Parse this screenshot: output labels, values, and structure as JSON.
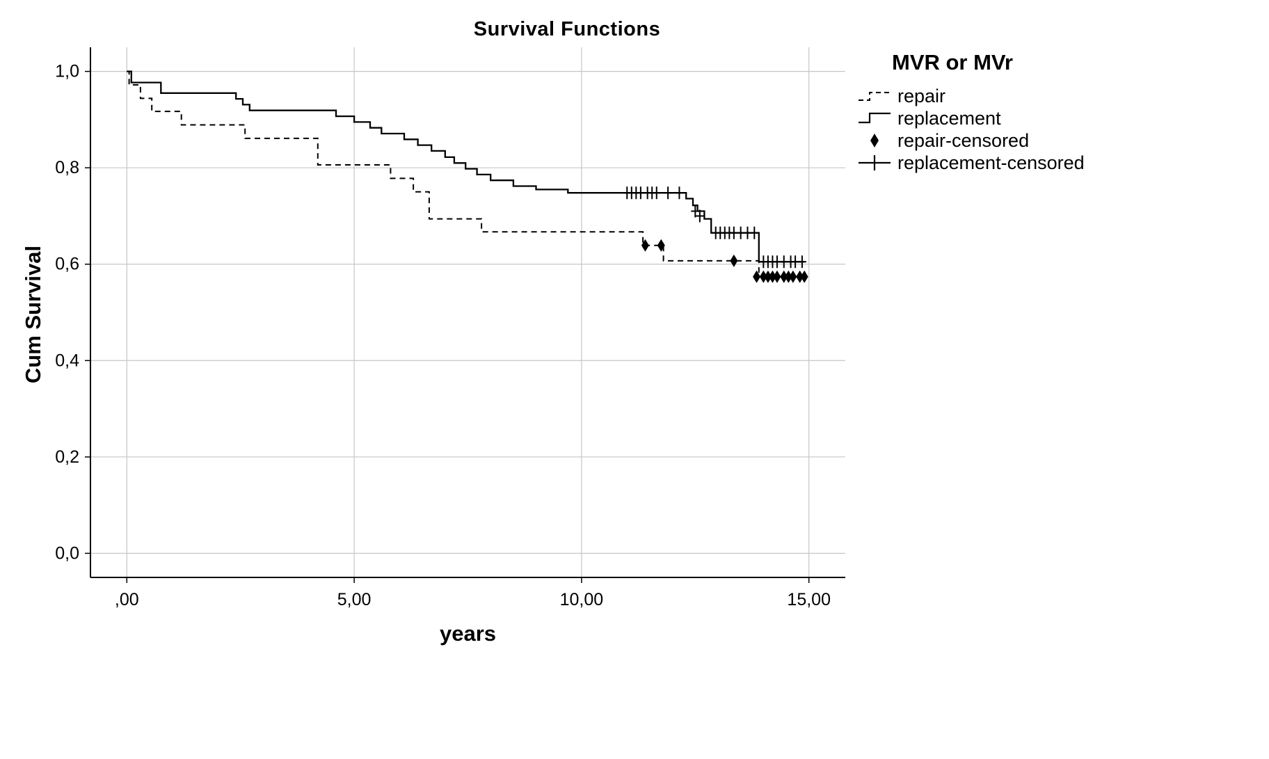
{
  "chart_data": {
    "type": "line",
    "subtype": "kaplan-meier-step",
    "title": "Survival Functions",
    "xlabel": "years",
    "ylabel": "Cum Survival",
    "legend_title": "MVR or MVr",
    "xlim": [
      -0.8,
      15.8
    ],
    "ylim": [
      -0.05,
      1.05
    ],
    "xticks": [
      0,
      5,
      10,
      15
    ],
    "xtick_labels": [
      ",00",
      "5,00",
      "10,00",
      "15,00"
    ],
    "yticks": [
      0.0,
      0.2,
      0.4,
      0.6,
      0.8,
      1.0
    ],
    "ytick_labels": [
      "0,0",
      "0,2",
      "0,4",
      "0,6",
      "0,8",
      "1,0"
    ],
    "grid": true,
    "legend_position": "right",
    "colors": {
      "line": "#000000",
      "grid": "#c6c6c6",
      "background": "#ffffff"
    },
    "series": [
      {
        "name": "repair",
        "type": "step",
        "style": "dashed",
        "points": [
          [
            0,
            1.0
          ],
          [
            0.05,
            0.972
          ],
          [
            0.3,
            0.944
          ],
          [
            0.55,
            0.917
          ],
          [
            1.2,
            0.889
          ],
          [
            2.6,
            0.861
          ],
          [
            4.2,
            0.806
          ],
          [
            5.8,
            0.778
          ],
          [
            6.3,
            0.75
          ],
          [
            6.65,
            0.694
          ],
          [
            7.8,
            0.667
          ],
          [
            11.35,
            0.639
          ],
          [
            11.8,
            0.607
          ],
          [
            13.9,
            0.574
          ],
          [
            14.9,
            0.574
          ]
        ]
      },
      {
        "name": "replacement",
        "type": "step",
        "style": "solid",
        "points": [
          [
            0,
            1.0
          ],
          [
            0.1,
            0.977
          ],
          [
            0.75,
            0.955
          ],
          [
            2.4,
            0.943
          ],
          [
            2.55,
            0.931
          ],
          [
            2.7,
            0.919
          ],
          [
            4.6,
            0.907
          ],
          [
            5.0,
            0.895
          ],
          [
            5.35,
            0.883
          ],
          [
            5.6,
            0.871
          ],
          [
            6.1,
            0.859
          ],
          [
            6.4,
            0.847
          ],
          [
            6.7,
            0.835
          ],
          [
            7.0,
            0.822
          ],
          [
            7.2,
            0.81
          ],
          [
            7.45,
            0.798
          ],
          [
            7.7,
            0.786
          ],
          [
            8.0,
            0.774
          ],
          [
            8.5,
            0.762
          ],
          [
            9.0,
            0.755
          ],
          [
            9.7,
            0.748
          ],
          [
            12.3,
            0.736
          ],
          [
            12.45,
            0.722
          ],
          [
            12.55,
            0.71
          ],
          [
            12.7,
            0.694
          ],
          [
            12.85,
            0.665
          ],
          [
            13.9,
            0.605
          ],
          [
            14.9,
            0.605
          ]
        ]
      },
      {
        "name": "repair-censored",
        "type": "marker",
        "marker": "diamond",
        "points": [
          [
            11.4,
            0.639
          ],
          [
            11.75,
            0.639
          ],
          [
            13.35,
            0.607
          ],
          [
            13.85,
            0.574
          ],
          [
            14.0,
            0.574
          ],
          [
            14.1,
            0.574
          ],
          [
            14.2,
            0.574
          ],
          [
            14.3,
            0.574
          ],
          [
            14.45,
            0.574
          ],
          [
            14.55,
            0.574
          ],
          [
            14.65,
            0.574
          ],
          [
            14.8,
            0.574
          ],
          [
            14.9,
            0.574
          ]
        ]
      },
      {
        "name": "replacement-censored",
        "type": "marker",
        "marker": "plus",
        "points": [
          [
            11.0,
            0.748
          ],
          [
            11.1,
            0.748
          ],
          [
            11.2,
            0.748
          ],
          [
            11.3,
            0.748
          ],
          [
            11.45,
            0.748
          ],
          [
            11.55,
            0.748
          ],
          [
            11.65,
            0.748
          ],
          [
            11.9,
            0.748
          ],
          [
            12.15,
            0.748
          ],
          [
            12.5,
            0.71
          ],
          [
            12.6,
            0.7
          ],
          [
            12.95,
            0.665
          ],
          [
            13.05,
            0.665
          ],
          [
            13.15,
            0.665
          ],
          [
            13.25,
            0.665
          ],
          [
            13.35,
            0.665
          ],
          [
            13.5,
            0.665
          ],
          [
            13.65,
            0.665
          ],
          [
            13.8,
            0.665
          ],
          [
            14.0,
            0.605
          ],
          [
            14.1,
            0.605
          ],
          [
            14.2,
            0.605
          ],
          [
            14.3,
            0.605
          ],
          [
            14.45,
            0.605
          ],
          [
            14.6,
            0.605
          ],
          [
            14.7,
            0.605
          ],
          [
            14.85,
            0.605
          ]
        ]
      }
    ]
  }
}
